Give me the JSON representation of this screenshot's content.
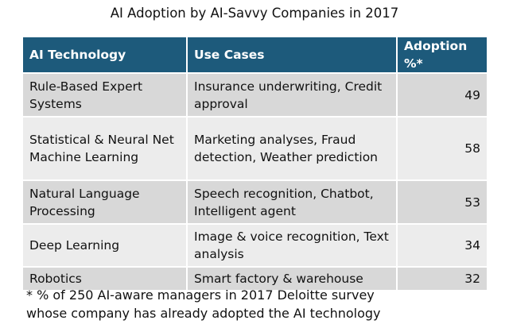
{
  "title": "AI Adoption by AI-Savvy Companies in 2017",
  "colors": {
    "header": "#1d5a7b",
    "row_dark": "#d8d8d8",
    "row_light": "#ececec"
  },
  "table": {
    "headers": [
      "AI Technology",
      "Use Cases",
      "Adoption %*"
    ],
    "rows": [
      {
        "tech": "Rule-Based Expert Systems",
        "uses": "Insurance underwriting, Credit approval",
        "adoption": "49"
      },
      {
        "tech": "Statistical & Neural Net Machine Learning",
        "uses": "Marketing analyses, Fraud detection, Weather prediction",
        "adoption": "58"
      },
      {
        "tech": "Natural Language Processing",
        "uses": "Speech recognition, Chatbot, Intelligent agent",
        "adoption": "53"
      },
      {
        "tech": "Deep Learning",
        "uses": "Image & voice recognition, Text analysis",
        "adoption": "34"
      },
      {
        "tech": "Robotics",
        "uses": "Smart factory & warehouse",
        "adoption": "32"
      }
    ]
  },
  "footnote": "* % of 250 AI-aware managers in 2017 Deloitte survey whose company has already adopted the AI technology"
}
